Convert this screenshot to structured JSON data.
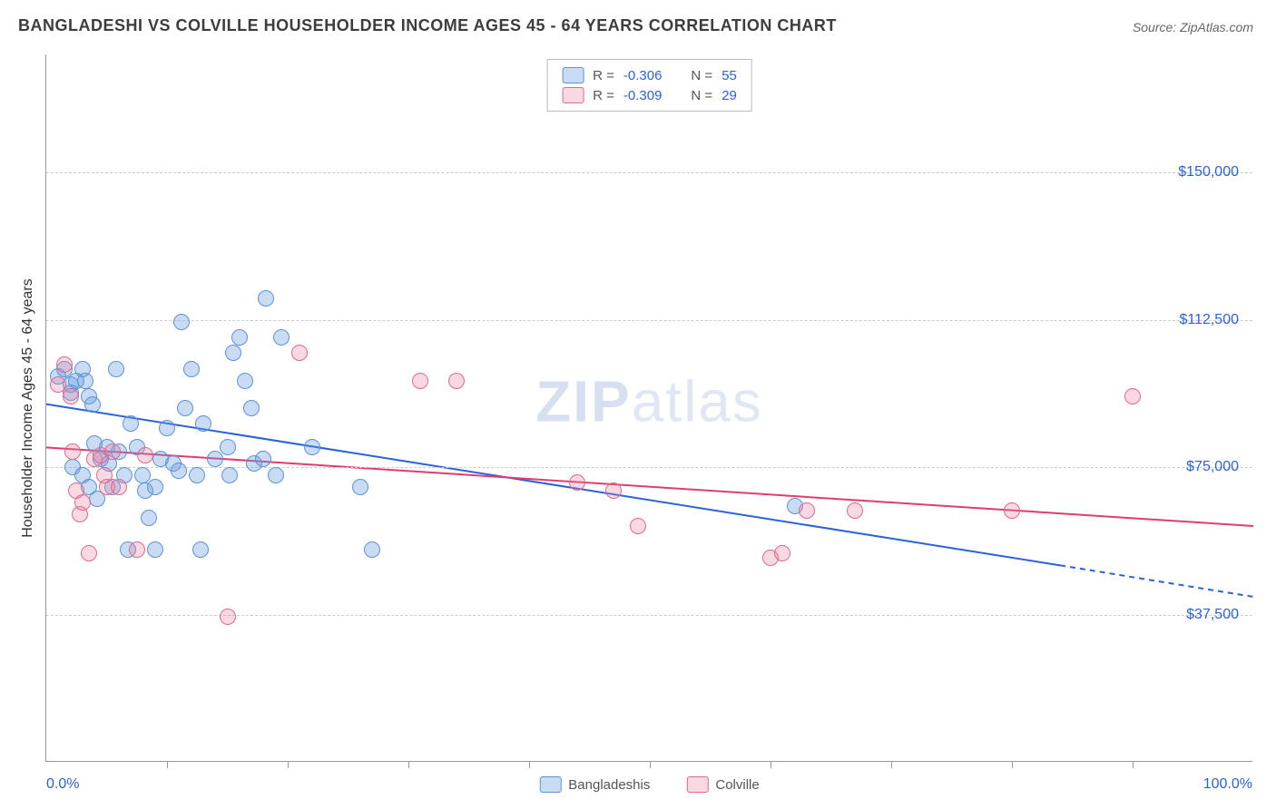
{
  "title": "BANGLADESHI VS COLVILLE HOUSEHOLDER INCOME AGES 45 - 64 YEARS CORRELATION CHART",
  "source": "Source: ZipAtlas.com",
  "watermark_1": "ZIP",
  "watermark_2": "atlas",
  "chart": {
    "type": "scatter",
    "y_axis_title": "Householder Income Ages 45 - 64 years",
    "background_color": "#ffffff",
    "grid_color": "#cccccc",
    "axis_color": "#999999",
    "text_color": "#333333",
    "label_color": "#2962d9",
    "xlim": [
      0,
      100
    ],
    "ylim": [
      0,
      180000
    ],
    "x_ticks": [
      10,
      20,
      30,
      40,
      50,
      60,
      70,
      80,
      90
    ],
    "x_label_min": "0.0%",
    "x_label_max": "100.0%",
    "y_grid": [
      {
        "value": 37500,
        "label": "$37,500"
      },
      {
        "value": 75000,
        "label": "$75,000"
      },
      {
        "value": 112500,
        "label": "$112,500"
      },
      {
        "value": 150000,
        "label": "$150,000"
      }
    ],
    "marker_radius": 9,
    "marker_stroke_width": 1.5,
    "trend_line_width": 2,
    "series": [
      {
        "name": "Bangladeshis",
        "fill": "rgba(99,154,224,0.35)",
        "stroke": "#5a94d6",
        "line_color": "#2962d9",
        "R": "-0.306",
        "N": "55",
        "trend": {
          "x1": 0,
          "y1": 91000,
          "x2": 84,
          "y2": 50000,
          "x2_ext": 100,
          "y2_ext": 42000
        },
        "points": [
          [
            1,
            98000
          ],
          [
            1.5,
            100000
          ],
          [
            2,
            96000
          ],
          [
            2,
            94000
          ],
          [
            2.5,
            97000
          ],
          [
            2.2,
            75000
          ],
          [
            3,
            100000
          ],
          [
            3.2,
            97000
          ],
          [
            3.5,
            93000
          ],
          [
            3.8,
            91000
          ],
          [
            3,
            73000
          ],
          [
            3.5,
            70000
          ],
          [
            4,
            81000
          ],
          [
            4.5,
            77000
          ],
          [
            4.2,
            67000
          ],
          [
            5,
            80000
          ],
          [
            5.2,
            76000
          ],
          [
            5.5,
            70000
          ],
          [
            5.8,
            100000
          ],
          [
            6,
            79000
          ],
          [
            6.5,
            73000
          ],
          [
            6.8,
            54000
          ],
          [
            7,
            86000
          ],
          [
            7.5,
            80000
          ],
          [
            8,
            73000
          ],
          [
            8.2,
            69000
          ],
          [
            8.5,
            62000
          ],
          [
            9,
            70000
          ],
          [
            9,
            54000
          ],
          [
            9.5,
            77000
          ],
          [
            10,
            85000
          ],
          [
            10.5,
            76000
          ],
          [
            11,
            74000
          ],
          [
            11.2,
            112000
          ],
          [
            11.5,
            90000
          ],
          [
            12,
            100000
          ],
          [
            12.5,
            73000
          ],
          [
            12.8,
            54000
          ],
          [
            13,
            86000
          ],
          [
            14,
            77000
          ],
          [
            15,
            80000
          ],
          [
            15.2,
            73000
          ],
          [
            15.5,
            104000
          ],
          [
            16,
            108000
          ],
          [
            16.5,
            97000
          ],
          [
            17,
            90000
          ],
          [
            17.2,
            76000
          ],
          [
            18,
            77000
          ],
          [
            18.2,
            118000
          ],
          [
            19,
            73000
          ],
          [
            19.5,
            108000
          ],
          [
            22,
            80000
          ],
          [
            26,
            70000
          ],
          [
            27,
            54000
          ],
          [
            62,
            65000
          ]
        ]
      },
      {
        "name": "Colville",
        "fill": "rgba(232,128,160,0.30)",
        "stroke": "#e06890",
        "line_color": "#e03d6e",
        "R": "-0.309",
        "N": "29",
        "trend": {
          "x1": 0,
          "y1": 80000,
          "x2": 100,
          "y2": 60000
        },
        "points": [
          [
            1,
            96000
          ],
          [
            1.5,
            101000
          ],
          [
            2,
            93000
          ],
          [
            2.2,
            79000
          ],
          [
            2.5,
            69000
          ],
          [
            2.8,
            63000
          ],
          [
            3,
            66000
          ],
          [
            3.5,
            53000
          ],
          [
            4,
            77000
          ],
          [
            4.5,
            78000
          ],
          [
            4.8,
            73000
          ],
          [
            5,
            70000
          ],
          [
            5.5,
            79000
          ],
          [
            6,
            70000
          ],
          [
            7.5,
            54000
          ],
          [
            8.2,
            78000
          ],
          [
            15,
            37000
          ],
          [
            21,
            104000
          ],
          [
            31,
            97000
          ],
          [
            34,
            97000
          ],
          [
            44,
            71000
          ],
          [
            47,
            69000
          ],
          [
            49,
            60000
          ],
          [
            60,
            52000
          ],
          [
            61,
            53000
          ],
          [
            63,
            64000
          ],
          [
            67,
            64000
          ],
          [
            80,
            64000
          ],
          [
            90,
            93000
          ]
        ]
      }
    ],
    "legend_top": {
      "R_prefix": "R =",
      "N_prefix": "N ="
    }
  }
}
